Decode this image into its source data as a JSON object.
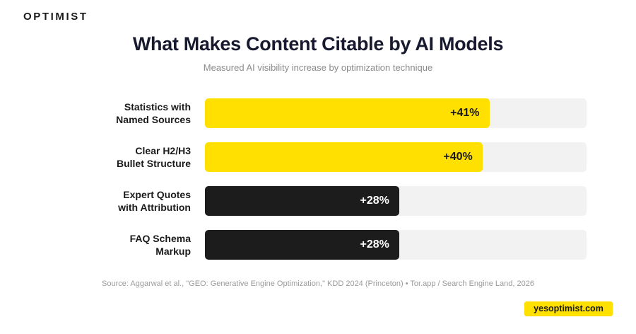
{
  "brand": {
    "logo": "OPTIMIST",
    "website": "yesoptimist.com"
  },
  "colors": {
    "highlight": "#ffe000",
    "dark": "#1c1c1c",
    "track": "#f2f2f2"
  },
  "chart_data": {
    "type": "bar",
    "orientation": "horizontal",
    "title": "What Makes Content Citable by AI Models",
    "subtitle": "Measured AI visibility increase by optimization technique",
    "categories": [
      "Statistics with\nNamed Sources",
      "Clear H2/H3\nBullet Structure",
      "Expert Quotes\nwith Attribution",
      "FAQ Schema\nMarkup"
    ],
    "values": [
      41,
      40,
      28,
      28
    ],
    "value_labels": [
      "+41%",
      "+40%",
      "+28%",
      "+28%"
    ],
    "bar_colors": [
      "#ffe000",
      "#ffe000",
      "#1c1c1c",
      "#1c1c1c"
    ],
    "xlim": [
      0,
      55
    ],
    "grid": false,
    "source": "Source: Aggarwal et al., \"GEO: Generative Engine Optimization,\" KDD 2024 (Princeton)  •  Tor.app / Search Engine Land, 2026"
  }
}
